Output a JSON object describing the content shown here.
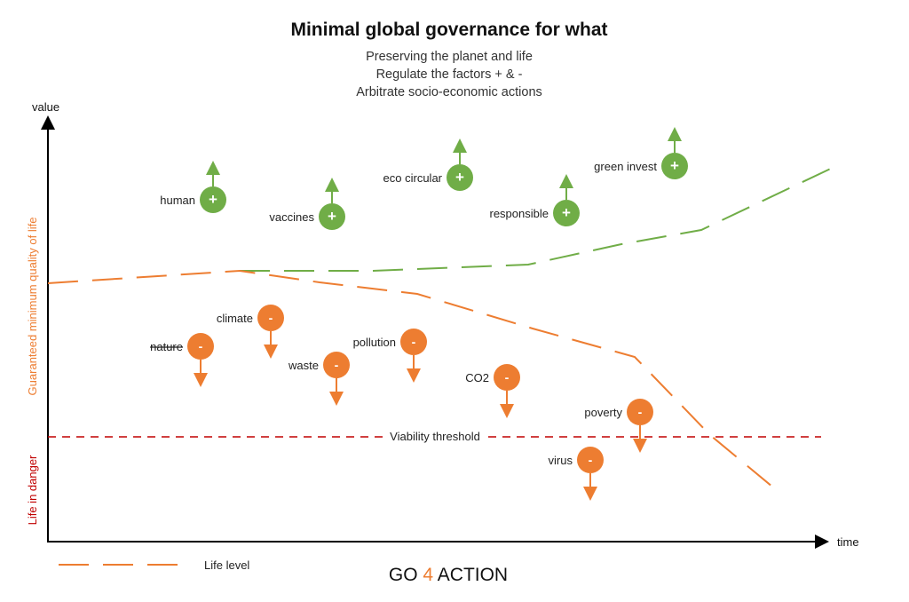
{
  "title": "Minimal global governance for what",
  "subtitles": [
    "Preserving the planet and life",
    "Regulate the factors + & -",
    "Arbitrate socio-economic actions"
  ],
  "axes": {
    "y_label": "value",
    "x_label": "time"
  },
  "side_labels": {
    "quality": "Guaranteed minimum quality of life",
    "danger": "Life in danger"
  },
  "threshold_label": "Viability threshold",
  "legend": {
    "life_level": "Life level"
  },
  "footer": {
    "go": "GO",
    "four": "4",
    "action": "ACTION"
  },
  "positive_factors": [
    {
      "label": "human",
      "sign": "+"
    },
    {
      "label": "vaccines",
      "sign": "+"
    },
    {
      "label": "eco circular",
      "sign": "+"
    },
    {
      "label": "responsible",
      "sign": "+"
    },
    {
      "label": "green invest",
      "sign": "+"
    }
  ],
  "negative_factors": [
    {
      "label": "climate",
      "sign": "-"
    },
    {
      "label": "nature",
      "sign": "-"
    },
    {
      "label": "waste",
      "sign": "-"
    },
    {
      "label": "pollution",
      "sign": "-"
    },
    {
      "label": "CO2",
      "sign": "-"
    },
    {
      "label": "poverty",
      "sign": "-"
    },
    {
      "label": "virus",
      "sign": "-"
    }
  ],
  "colors": {
    "green": "#70ad47",
    "orange": "#ed7d31",
    "red": "#c00000",
    "axis": "#000000"
  }
}
